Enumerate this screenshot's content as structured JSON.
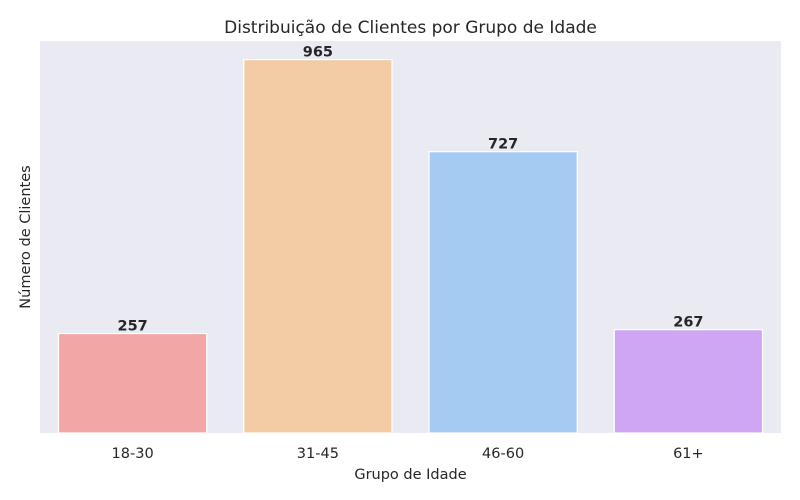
{
  "chart_data": {
    "type": "bar",
    "title": "Distribuição de Clientes por Grupo de Idade",
    "xlabel": "Grupo de Idade",
    "ylabel": "Número de Clientes",
    "categories": [
      "18-30",
      "31-45",
      "46-60",
      "61+"
    ],
    "values": [
      257,
      965,
      727,
      267
    ],
    "data_labels": [
      "257",
      "965",
      "727",
      "267"
    ],
    "colors": [
      "#f2a6a6",
      "#f3cba5",
      "#a6cbf2",
      "#cfa6f3"
    ],
    "ylim": [
      0,
      1013
    ],
    "grid": false,
    "y_ticks_visible": false,
    "plot_background": "#eaeaf2",
    "bar_edge_color": "#ffffff"
  }
}
